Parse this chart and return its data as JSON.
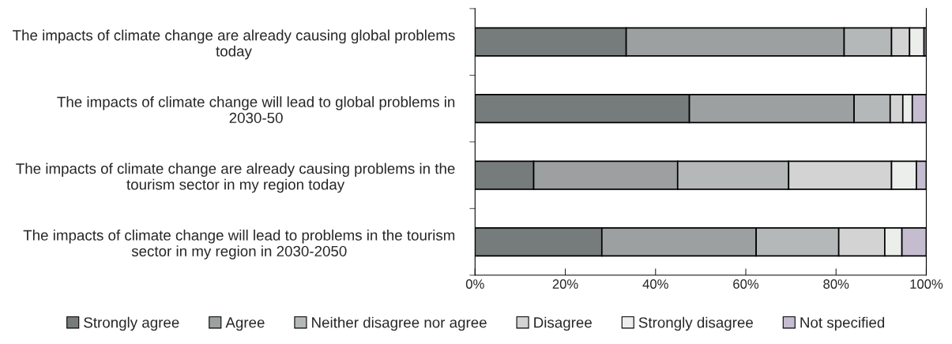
{
  "chart_data": {
    "type": "bar",
    "orientation": "horizontal",
    "stacked": true,
    "categories": [
      "The impacts of climate change are already causing global problems today",
      "The impacts of climate change will lead to global problems in 2030-50",
      "The impacts of climate change are already causing problems in the tourism sector in my region today",
      "The impacts of climate change will lead to problems in the tourism sector in my region in 2030-2050"
    ],
    "series": [
      {
        "name": "Strongly agree",
        "color": "#767b7b",
        "values": [
          33.5,
          47.5,
          13.0,
          28.1
        ]
      },
      {
        "name": "Agree",
        "color": "#9ca0a0",
        "values": [
          48.3,
          36.5,
          31.9,
          34.2
        ]
      },
      {
        "name": "Neither disagree nor agree",
        "color": "#b5b8b8",
        "values": [
          10.5,
          8.0,
          24.6,
          18.3
        ]
      },
      {
        "name": "Disagree",
        "color": "#d3d3d3",
        "values": [
          4.0,
          2.8,
          22.8,
          10.2
        ]
      },
      {
        "name": "Strongly disagree",
        "color": "#eceeec",
        "values": [
          3.2,
          2.1,
          5.5,
          3.8
        ]
      },
      {
        "name": "Not specified",
        "color": "#c5bcd0",
        "values": [
          0.5,
          3.1,
          2.2,
          5.4
        ]
      }
    ],
    "xlim": [
      0,
      100
    ],
    "xticks": [
      {
        "value": 0,
        "label": "0%"
      },
      {
        "value": 20,
        "label": "20%"
      },
      {
        "value": 40,
        "label": "40%"
      },
      {
        "value": 60,
        "label": "60%"
      },
      {
        "value": 80,
        "label": "80%"
      },
      {
        "value": 100,
        "label": "100%"
      }
    ],
    "legend": "bottom",
    "grid": false
  }
}
